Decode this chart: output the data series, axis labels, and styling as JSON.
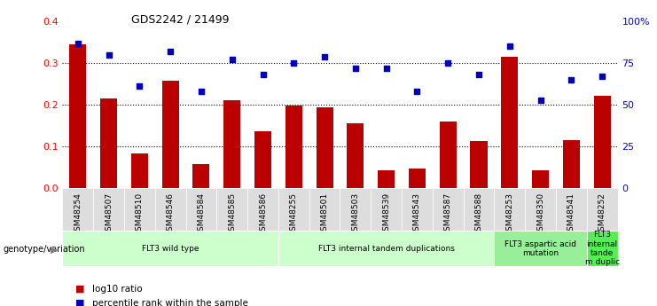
{
  "title": "GDS2242 / 21499",
  "samples": [
    "GSM48254",
    "GSM48507",
    "GSM48510",
    "GSM48546",
    "GSM48584",
    "GSM48585",
    "GSM48586",
    "GSM48255",
    "GSM48501",
    "GSM48503",
    "GSM48539",
    "GSM48543",
    "GSM48587",
    "GSM48588",
    "GSM48253",
    "GSM48350",
    "GSM48541",
    "GSM48252"
  ],
  "log10_ratio": [
    0.345,
    0.215,
    0.083,
    0.258,
    0.058,
    0.212,
    0.136,
    0.198,
    0.195,
    0.156,
    0.043,
    0.048,
    0.16,
    0.113,
    0.315,
    0.042,
    0.115,
    0.222
  ],
  "percentile_rank": [
    87,
    80,
    61,
    82,
    58,
    77,
    68,
    75,
    79,
    72,
    72,
    58,
    75,
    68,
    85,
    53,
    65,
    67
  ],
  "bar_color": "#bb0000",
  "dot_color": "#0000bb",
  "ylim_left": [
    0,
    0.4
  ],
  "ylim_right": [
    0,
    100
  ],
  "yticks_left": [
    0,
    0.1,
    0.2,
    0.3,
    0.4
  ],
  "yticks_right": [
    0,
    25,
    50,
    75,
    100
  ],
  "ytick_labels_right": [
    "0",
    "25",
    "50",
    "75",
    "100%"
  ],
  "groups": [
    {
      "label": "FLT3 wild type",
      "start": 0,
      "end": 7,
      "color": "#ccffcc"
    },
    {
      "label": "FLT3 internal tandem duplications",
      "start": 7,
      "end": 14,
      "color": "#ccffcc"
    },
    {
      "label": "FLT3 aspartic acid\nmutation",
      "start": 14,
      "end": 17,
      "color": "#99ee99"
    },
    {
      "label": "FLT3\ninternal\ntande\nm duplic",
      "start": 17,
      "end": 18,
      "color": "#55ee55"
    }
  ],
  "legend_bar_label": "log10 ratio",
  "legend_dot_label": "percentile rank within the sample",
  "genotype_label": "genotype/variation",
  "background_color": "#ffffff",
  "plot_bg_color": "#ffffff",
  "tick_bg_color": "#dddddd"
}
